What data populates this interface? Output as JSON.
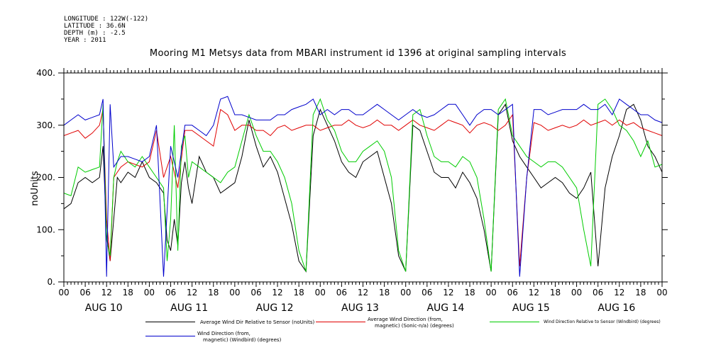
{
  "header": {
    "longitude": "LONGITUDE : 122W(-122)",
    "latitude": "LATITUDE : 36.6N",
    "depth": "DEPTH (m) : -2.5",
    "year": "YEAR : 2011"
  },
  "chart_data": {
    "type": "line",
    "title": "Mooring M1 Metsys data from MBARI instrument id 1396 at original sampling intervals",
    "ylabel": "noUnits",
    "xlabel": "",
    "ylim": [
      0,
      400
    ],
    "yticks": [
      0,
      100,
      200,
      300,
      400
    ],
    "ytick_labels": [
      "0.",
      "100.",
      "200.",
      "300.",
      "400."
    ],
    "xlim_hours": [
      0,
      168
    ],
    "xtick_hour_labels": [
      "00",
      "06",
      "12",
      "18",
      "00",
      "06",
      "12",
      "18",
      "00",
      "06",
      "12",
      "18",
      "00",
      "06",
      "12",
      "18",
      "00",
      "06",
      "12",
      "18",
      "00",
      "06",
      "12",
      "18",
      "00",
      "06",
      "12",
      "18",
      "00"
    ],
    "day_labels": [
      "AUG 10",
      "AUG 11",
      "AUG 12",
      "AUG 13",
      "AUG 14",
      "AUG 15",
      "AUG 16"
    ],
    "x_unit": "hours since AUG 10 00:00",
    "grid": false,
    "legend_placement": "bottom",
    "series": [
      {
        "name": "Average Wind Dir Relative to Sensor (noUnits)",
        "color": "#000000",
        "x": [
          0,
          2,
          4,
          6,
          8,
          10,
          11,
          12,
          13,
          14,
          15,
          16,
          18,
          20,
          22,
          24,
          26,
          28,
          29,
          30,
          31,
          32,
          33,
          34,
          35,
          36,
          38,
          40,
          42,
          44,
          46,
          48,
          50,
          52,
          54,
          56,
          58,
          60,
          62,
          64,
          66,
          68,
          70,
          72,
          74,
          76,
          78,
          80,
          82,
          84,
          86,
          88,
          90,
          92,
          94,
          96,
          98,
          100,
          102,
          104,
          106,
          108,
          110,
          112,
          114,
          116,
          118,
          120,
          122,
          124,
          126,
          128,
          130,
          132,
          134,
          136,
          138,
          140,
          142,
          144,
          146,
          148,
          150,
          152,
          154,
          156,
          158,
          160,
          162,
          164,
          166,
          168
        ],
        "y": [
          140,
          150,
          190,
          200,
          190,
          200,
          260,
          90,
          40,
          120,
          200,
          190,
          210,
          200,
          230,
          200,
          190,
          170,
          80,
          60,
          120,
          70,
          190,
          230,
          180,
          150,
          240,
          210,
          200,
          170,
          180,
          190,
          240,
          310,
          260,
          220,
          240,
          210,
          160,
          110,
          40,
          20,
          280,
          330,
          300,
          270,
          230,
          210,
          200,
          230,
          240,
          250,
          200,
          150,
          50,
          20,
          300,
          290,
          250,
          210,
          200,
          200,
          180,
          210,
          190,
          160,
          100,
          20,
          320,
          340,
          270,
          240,
          220,
          200,
          180,
          190,
          200,
          190,
          170,
          160,
          180,
          210,
          30,
          180,
          240,
          280,
          330,
          340,
          310,
          260,
          240,
          210
        ]
      },
      {
        "name": "Average Wind Direction (from, magnetic) (Sonic-n/a) (degrees)",
        "color": "#e00000",
        "x": [
          0,
          2,
          4,
          6,
          8,
          10,
          11,
          12,
          13,
          14,
          16,
          18,
          20,
          22,
          24,
          26,
          28,
          30,
          32,
          34,
          36,
          38,
          40,
          42,
          44,
          46,
          48,
          50,
          52,
          54,
          56,
          58,
          60,
          62,
          64,
          66,
          68,
          70,
          72,
          74,
          76,
          78,
          80,
          82,
          84,
          86,
          88,
          90,
          92,
          94,
          96,
          98,
          100,
          102,
          104,
          106,
          108,
          110,
          112,
          114,
          116,
          118,
          120,
          122,
          124,
          126,
          128,
          130,
          132,
          134,
          136,
          138,
          140,
          142,
          144,
          146,
          148,
          150,
          152,
          154,
          156,
          158,
          160,
          162,
          164,
          166,
          168
        ],
        "y": [
          280,
          285,
          290,
          275,
          285,
          300,
          330,
          120,
          40,
          200,
          220,
          230,
          225,
          220,
          230,
          290,
          200,
          240,
          180,
          290,
          290,
          280,
          270,
          260,
          330,
          320,
          290,
          300,
          300,
          290,
          290,
          280,
          295,
          300,
          290,
          295,
          300,
          300,
          290,
          295,
          300,
          300,
          310,
          300,
          295,
          300,
          310,
          300,
          300,
          290,
          300,
          310,
          300,
          295,
          290,
          300,
          310,
          305,
          300,
          285,
          300,
          305,
          300,
          290,
          300,
          320,
          30,
          200,
          305,
          300,
          290,
          295,
          300,
          295,
          300,
          310,
          300,
          305,
          310,
          300,
          310,
          300,
          305,
          295,
          290,
          285,
          280
        ]
      },
      {
        "name": "Wind Direction Relative to Sensor (Windbird) (degrees)",
        "color": "#00cc00",
        "x": [
          0,
          2,
          4,
          6,
          8,
          10,
          11,
          12,
          13,
          14,
          15,
          16,
          18,
          20,
          22,
          24,
          26,
          28,
          29,
          30,
          31,
          32,
          33,
          34,
          35,
          36,
          38,
          40,
          42,
          44,
          46,
          48,
          50,
          52,
          54,
          56,
          58,
          60,
          62,
          64,
          66,
          68,
          70,
          72,
          74,
          76,
          78,
          80,
          82,
          84,
          86,
          88,
          90,
          92,
          94,
          96,
          98,
          100,
          102,
          104,
          106,
          108,
          110,
          112,
          114,
          116,
          118,
          120,
          122,
          124,
          126,
          128,
          130,
          132,
          134,
          136,
          138,
          140,
          142,
          144,
          146,
          148,
          150,
          152,
          154,
          156,
          158,
          160,
          162,
          164,
          166,
          168
        ],
        "y": [
          170,
          165,
          220,
          210,
          215,
          220,
          340,
          80,
          50,
          200,
          230,
          250,
          230,
          220,
          240,
          220,
          200,
          180,
          40,
          120,
          300,
          60,
          260,
          280,
          200,
          230,
          220,
          210,
          200,
          190,
          210,
          220,
          270,
          320,
          280,
          250,
          250,
          230,
          200,
          150,
          60,
          20,
          320,
          350,
          310,
          290,
          250,
          230,
          230,
          250,
          260,
          270,
          250,
          200,
          60,
          20,
          320,
          330,
          280,
          240,
          230,
          230,
          220,
          240,
          230,
          200,
          120,
          20,
          330,
          350,
          280,
          260,
          240,
          230,
          220,
          230,
          230,
          220,
          200,
          180,
          100,
          30,
          340,
          350,
          330,
          300,
          290,
          270,
          240,
          270,
          220,
          225
        ]
      },
      {
        "name": "Wind Direction (from, magnetic) (Windbird) (degrees)",
        "color": "#0000cc",
        "x": [
          0,
          2,
          4,
          6,
          8,
          10,
          11,
          12,
          13,
          14,
          16,
          18,
          20,
          22,
          24,
          26,
          28,
          30,
          32,
          34,
          36,
          38,
          40,
          42,
          44,
          46,
          48,
          50,
          52,
          54,
          56,
          58,
          60,
          62,
          64,
          66,
          68,
          70,
          72,
          74,
          76,
          78,
          80,
          82,
          84,
          86,
          88,
          90,
          92,
          94,
          96,
          98,
          100,
          102,
          104,
          106,
          108,
          110,
          112,
          114,
          116,
          118,
          120,
          122,
          124,
          126,
          128,
          130,
          132,
          134,
          136,
          138,
          140,
          142,
          144,
          146,
          148,
          150,
          152,
          154,
          156,
          158,
          160,
          162,
          164,
          166,
          168
        ],
        "y": [
          300,
          310,
          320,
          310,
          315,
          320,
          350,
          10,
          340,
          220,
          240,
          240,
          235,
          230,
          240,
          300,
          10,
          260,
          200,
          300,
          300,
          290,
          280,
          300,
          350,
          355,
          320,
          320,
          315,
          310,
          310,
          310,
          320,
          320,
          330,
          335,
          340,
          350,
          320,
          330,
          320,
          330,
          330,
          320,
          320,
          330,
          340,
          330,
          320,
          310,
          320,
          330,
          320,
          315,
          320,
          330,
          340,
          340,
          320,
          300,
          320,
          330,
          330,
          320,
          330,
          340,
          10,
          200,
          330,
          330,
          320,
          325,
          330,
          330,
          330,
          340,
          330,
          330,
          340,
          320,
          350,
          340,
          330,
          320,
          320,
          310,
          305
        ]
      }
    ]
  },
  "legend": [
    {
      "label_line1": "Average Wind Dir Relative to Sensor (noUnits)",
      "label_line2": "",
      "color": "#000000"
    },
    {
      "label_line1": "Average Wind Direction (from,",
      "label_line2": "magnetic) (Sonic-n/a) (degrees)",
      "color": "#e00000"
    },
    {
      "label_line1": "Wind Direction Relative to Sensor (Windbird) (degrees)",
      "label_line2": "",
      "color": "#00cc00"
    },
    {
      "label_line1": "Wind Direction (from,",
      "label_line2": "magnetic) (Windbird) (degrees)",
      "color": "#0000cc"
    }
  ]
}
